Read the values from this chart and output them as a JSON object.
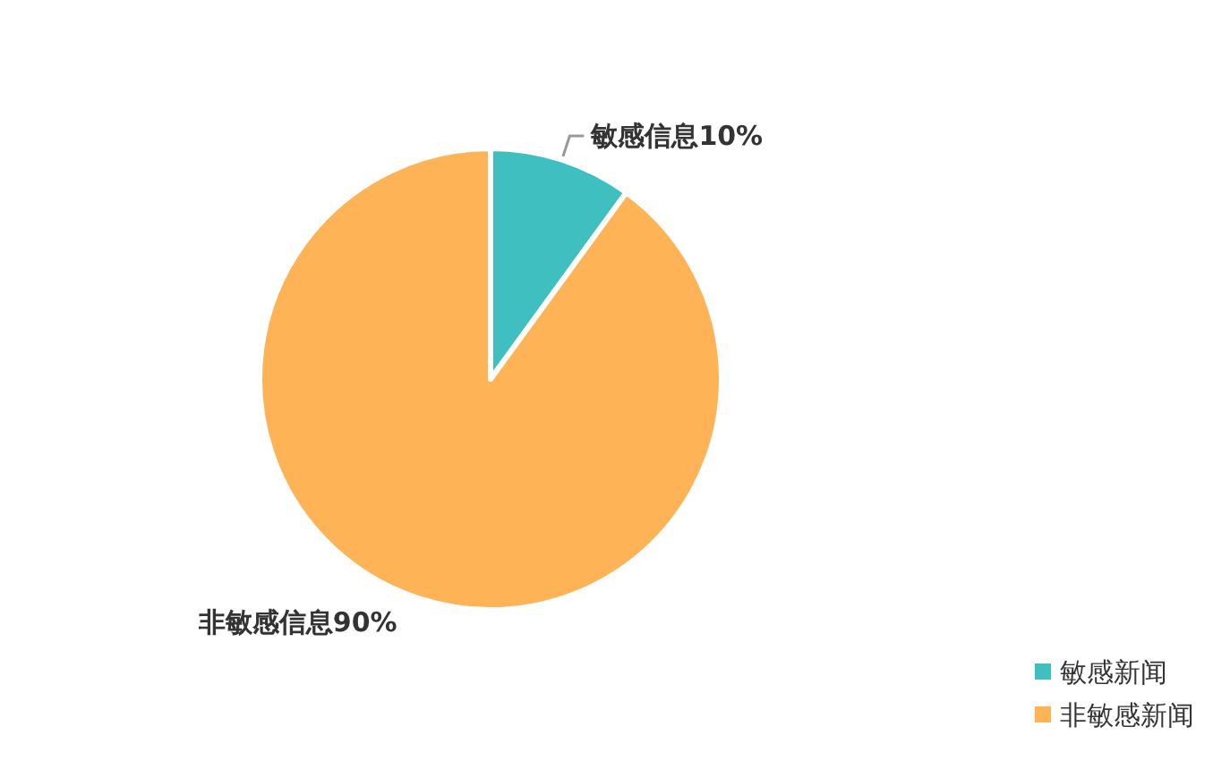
{
  "chart_data": {
    "type": "pie",
    "categories": [
      "敏感新闻",
      "非敏感新闻"
    ],
    "values": [
      10,
      90
    ],
    "colors": [
      "#3fbfbf",
      "#ffb357"
    ],
    "value_labels": [
      "敏感信息10%",
      "非敏感信息90%"
    ],
    "legend": "bottom right"
  }
}
